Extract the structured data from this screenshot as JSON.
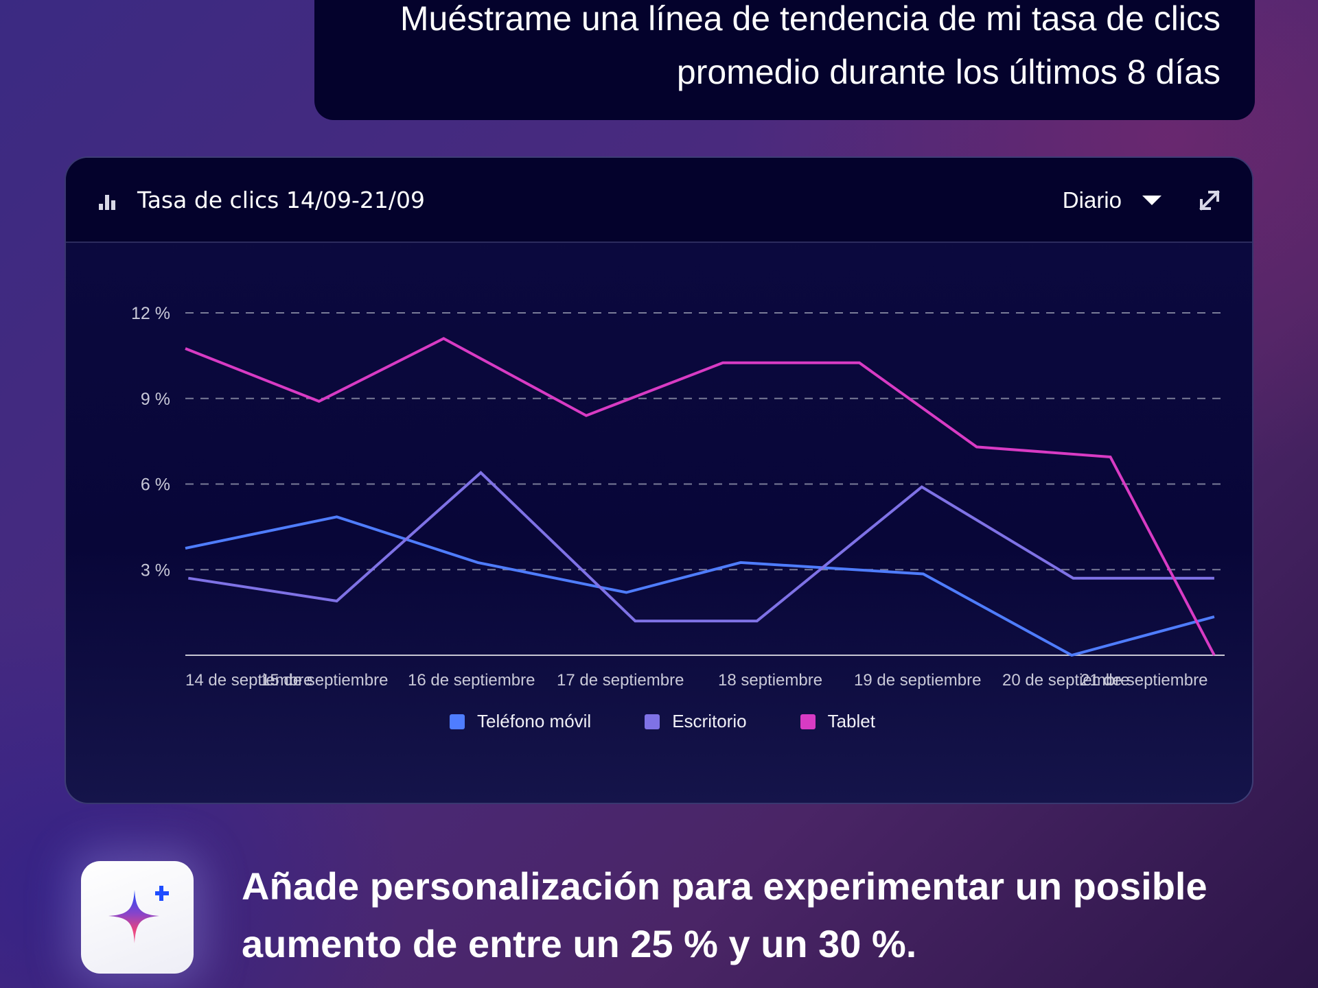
{
  "prompt": {
    "text": "Muéstrame una línea de tendencia de mi tasa de clics promedio durante los últimos 8 días"
  },
  "card": {
    "title_icon": "bar-chart-icon",
    "title": "Tasa de clics 14/09-21/09",
    "period_select": {
      "selected": "Diario",
      "icon": "caret-down-icon"
    },
    "expand_icon": "expand-arrows-icon"
  },
  "promo": {
    "icon": "sparkle-plus-icon",
    "text": "Añade personalización para experimentar un posible aumento de entre un 25 % y un 30 %."
  },
  "chart_data": {
    "type": "line",
    "title": "Tasa de clics 14/09-21/09",
    "xlabel": "",
    "ylabel": "",
    "categories": [
      "14 de septiembre",
      "15 de septiembre",
      "16 de septiembre",
      "17 de septiembre",
      "18 septiembre",
      "19 de septiembre",
      "20 de septiembre",
      "21 de septiembre"
    ],
    "yticks": [
      "12 %",
      "9 %",
      "6 %",
      "3 %"
    ],
    "ytick_values": [
      12,
      9,
      6,
      3
    ],
    "ylim": [
      0,
      12
    ],
    "xlim": [
      0,
      7
    ],
    "grid": "horizontal-dashed",
    "legend_position": "bottom-center",
    "series": [
      {
        "name": "Teléfono móvil",
        "color": "#4f7dff",
        "x": [
          0,
          1.02,
          1.97,
          2.97,
          3.74,
          4.97,
          5.97,
          6.93
        ],
        "values": [
          3.75,
          4.85,
          3.25,
          2.2,
          3.25,
          2.85,
          0.0,
          1.35
        ]
      },
      {
        "name": "Escritorio",
        "color": "#7f72e6",
        "x": [
          0.02,
          1.02,
          1.99,
          3.03,
          3.85,
          4.96,
          5.98,
          6.93
        ],
        "values": [
          2.7,
          1.9,
          6.4,
          1.2,
          1.2,
          5.9,
          2.7,
          2.7
        ]
      },
      {
        "name": "Tablet",
        "color": "#d83bc4",
        "x": [
          0,
          0.9,
          1.74,
          2.7,
          3.62,
          4.54,
          5.33,
          6.23,
          6.93
        ],
        "values": [
          10.75,
          8.9,
          11.1,
          8.4,
          10.25,
          10.25,
          7.3,
          6.95,
          0.0
        ]
      }
    ]
  }
}
